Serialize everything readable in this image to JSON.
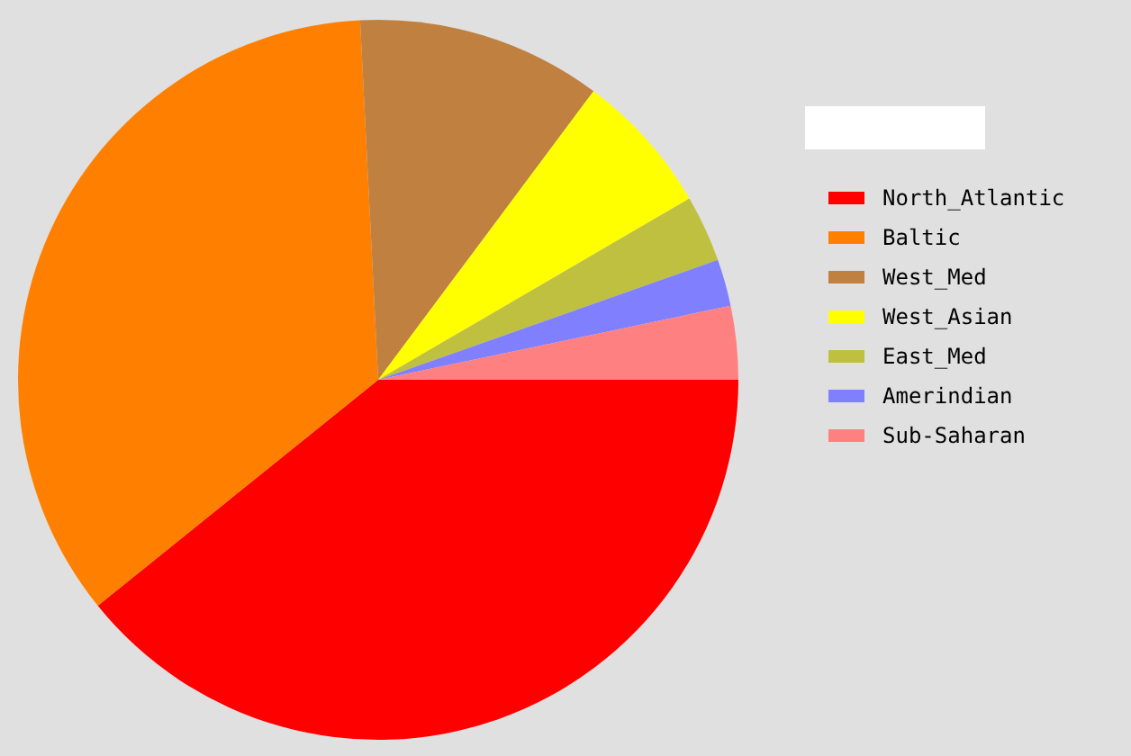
{
  "chart_data": {
    "type": "pie",
    "categories": [
      "North_Atlantic",
      "Baltic",
      "West_Med",
      "West_Asian",
      "East_Med",
      "Amerindian",
      "Sub-Saharan"
    ],
    "values": [
      39.2,
      35.0,
      11.0,
      6.4,
      3.0,
      2.1,
      3.3
    ],
    "colors": [
      "#ff0000",
      "#ff8000",
      "#c08040",
      "#ffff00",
      "#c0c040",
      "#8080ff",
      "#ff8080"
    ],
    "legend": "top right"
  }
}
